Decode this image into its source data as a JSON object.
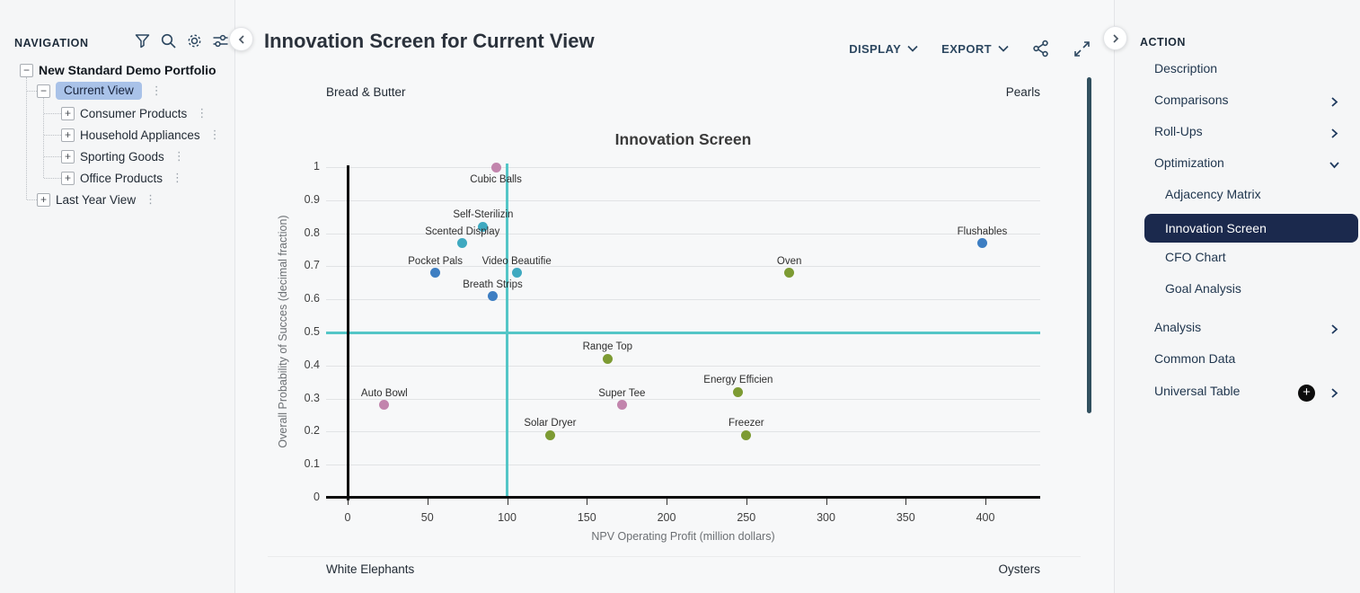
{
  "navigation": {
    "title": "NAVIGATION",
    "icons": [
      "filter-icon",
      "search-icon",
      "gear-icon",
      "sliders-icon"
    ],
    "tree": [
      {
        "label": "New Standard Demo Portfolio",
        "level": 0,
        "expander": "minus",
        "bold": true,
        "selected": false,
        "kebab": false
      },
      {
        "label": "Current View",
        "level": 1,
        "expander": "minus",
        "bold": false,
        "selected": true,
        "kebab": true
      },
      {
        "label": "Consumer Products",
        "level": 2,
        "expander": "plus",
        "bold": false,
        "selected": false,
        "kebab": true
      },
      {
        "label": "Household Appliances",
        "level": 2,
        "expander": "plus",
        "bold": false,
        "selected": false,
        "kebab": true
      },
      {
        "label": "Sporting Goods",
        "level": 2,
        "expander": "plus",
        "bold": false,
        "selected": false,
        "kebab": true
      },
      {
        "label": "Office Products",
        "level": 2,
        "expander": "plus",
        "bold": false,
        "selected": false,
        "kebab": true
      },
      {
        "label": "Last Year View",
        "level": 1,
        "expander": "plus",
        "bold": false,
        "selected": false,
        "kebab": true
      }
    ]
  },
  "header": {
    "title": "Innovation Screen for Current View",
    "display_label": "DISPLAY",
    "export_label": "EXPORT",
    "icons": [
      "share-icon",
      "expand-icon"
    ]
  },
  "action_panel": {
    "title": "ACTION",
    "selected_bg": "#1b294d",
    "items": [
      {
        "label": "Description",
        "sub": false
      },
      {
        "label": "Comparisons",
        "sub": false,
        "chevron": "right"
      },
      {
        "label": "Roll-Ups",
        "sub": false,
        "chevron": "right"
      },
      {
        "label": "Optimization",
        "sub": false,
        "chevron": "down"
      },
      {
        "label": "Adjacency Matrix",
        "sub": true
      },
      {
        "label": "Innovation Screen",
        "sub": true,
        "selected": true
      },
      {
        "label": "CFO Chart",
        "sub": true
      },
      {
        "label": "Goal Analysis",
        "sub": true
      },
      {
        "label": "Analysis",
        "sub": false,
        "chevron": "right"
      },
      {
        "label": "Common Data",
        "sub": false
      },
      {
        "label": "Universal Table",
        "sub": false,
        "chevron": "right",
        "plus_badge": true
      }
    ]
  },
  "chart_data": {
    "type": "scatter",
    "title": "Innovation Screen",
    "xlabel": "NPV Operating Profit (million dollars)",
    "ylabel": "Overall Probability of Succes (decimal fraction)",
    "x_ticks": [
      0,
      50,
      100,
      150,
      200,
      250,
      300,
      350,
      400
    ],
    "y_ticks": [
      0,
      0.1,
      0.2,
      0.3,
      0.4,
      0.5,
      0.6,
      0.7,
      0.8,
      0.9,
      1
    ],
    "xlim": [
      -13,
      434
    ],
    "ylim": [
      0,
      1
    ],
    "grid": "horizontal",
    "legend": "none",
    "zero_axis_color": "#0b0b0b",
    "crosshair": {
      "x": 100,
      "y": 0.5,
      "color": "#54c6c7"
    },
    "quadrant_labels": {
      "top_left": "Bread & Butter",
      "top_right": "Pearls",
      "bottom_left": "White Elephants",
      "bottom_right": "Oysters",
      "color": "#b05c5c"
    },
    "palette": {
      "blue": "#3d7ec2",
      "teal": "#3fa9c0",
      "olive": "#7d9b33",
      "pink": "#c285ad"
    },
    "points": [
      {
        "label": "Cubic Balls",
        "x": 93,
        "y": 1.0,
        "color": "pink",
        "label_pos": "below"
      },
      {
        "label": "Self-Sterilizin",
        "x": 85,
        "y": 0.82,
        "color": "teal"
      },
      {
        "label": "Scented Display",
        "x": 72,
        "y": 0.77,
        "color": "teal"
      },
      {
        "label": "Flushables",
        "x": 398,
        "y": 0.77,
        "color": "blue"
      },
      {
        "label": "Pocket Pals",
        "x": 55,
        "y": 0.68,
        "color": "blue"
      },
      {
        "label": "Video Beautifie",
        "x": 106,
        "y": 0.68,
        "color": "teal"
      },
      {
        "label": "Oven",
        "x": 277,
        "y": 0.68,
        "color": "olive"
      },
      {
        "label": "Breath Strips",
        "x": 91,
        "y": 0.61,
        "color": "blue"
      },
      {
        "label": "Range Top",
        "x": 163,
        "y": 0.42,
        "color": "olive"
      },
      {
        "label": "Energy Efficien",
        "x": 245,
        "y": 0.32,
        "color": "olive"
      },
      {
        "label": "Auto Bowl",
        "x": 23,
        "y": 0.28,
        "color": "pink"
      },
      {
        "label": "Super Tee",
        "x": 172,
        "y": 0.28,
        "color": "pink"
      },
      {
        "label": "Solar Dryer",
        "x": 127,
        "y": 0.19,
        "color": "olive"
      },
      {
        "label": "Freezer",
        "x": 250,
        "y": 0.19,
        "color": "olive"
      }
    ]
  }
}
